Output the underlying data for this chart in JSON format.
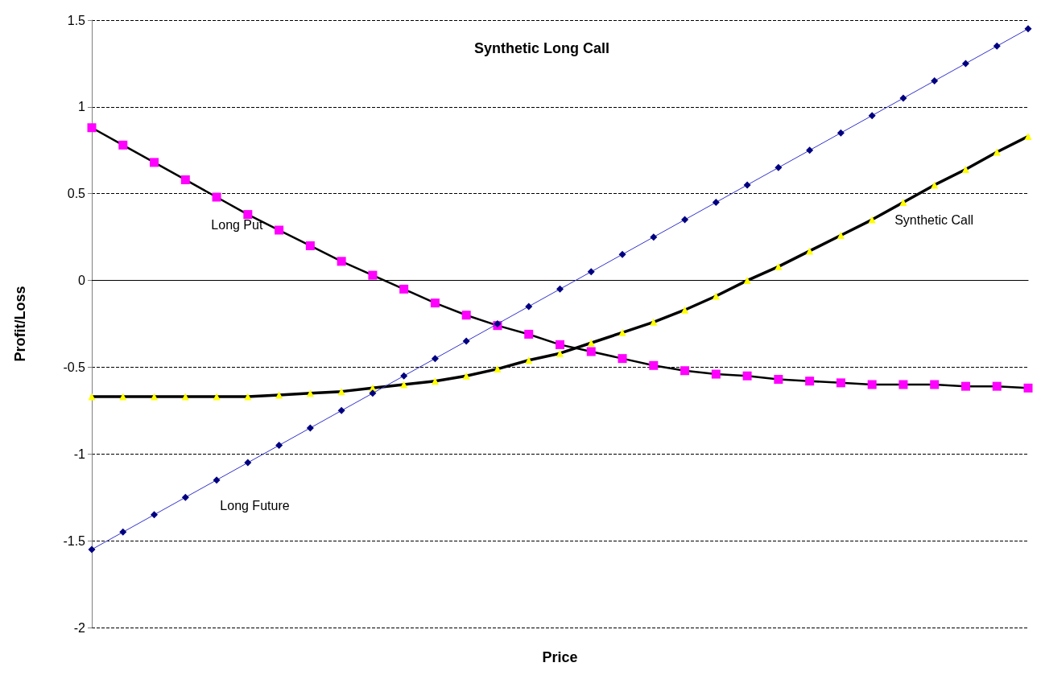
{
  "chart_data": {
    "type": "line",
    "title": "Synthetic Long Call",
    "xlabel": "Price",
    "ylabel": "Profit/Loss",
    "categories": [
      null,
      null,
      null,
      null,
      null,
      null,
      null,
      null,
      null,
      null,
      null,
      null,
      null,
      null,
      null,
      null,
      null,
      null,
      null,
      null,
      null,
      null,
      null,
      null,
      null,
      null,
      null,
      null,
      null,
      null,
      null
    ],
    "series": [
      {
        "name": "Long Put",
        "color": "#ff00ff",
        "marker": "square",
        "values": [
          0.88,
          0.78,
          0.68,
          0.58,
          0.48,
          0.38,
          0.29,
          0.2,
          0.11,
          0.03,
          -0.05,
          -0.13,
          -0.2,
          -0.26,
          -0.31,
          -0.37,
          -0.41,
          -0.45,
          -0.49,
          -0.52,
          -0.54,
          -0.55,
          -0.57,
          -0.58,
          -0.59,
          -0.6,
          -0.6,
          -0.6,
          -0.61,
          -0.61,
          -0.62
        ]
      },
      {
        "name": "Synthetic Call",
        "color": "#ffff00",
        "marker": "triangle",
        "values": [
          -0.67,
          -0.67,
          -0.67,
          -0.67,
          -0.67,
          -0.67,
          -0.66,
          -0.65,
          -0.64,
          -0.62,
          -0.6,
          -0.58,
          -0.55,
          -0.51,
          -0.46,
          -0.42,
          -0.36,
          -0.3,
          -0.24,
          -0.17,
          -0.09,
          0,
          0.08,
          0.17,
          0.26,
          0.35,
          0.45,
          0.55,
          0.64,
          0.74,
          0.83
        ]
      },
      {
        "name": "Long Future",
        "color": "#000080",
        "marker": "diamond",
        "values": [
          -1.55,
          -1.45,
          -1.35,
          -1.25,
          -1.15,
          -1.05,
          -0.95,
          -0.85,
          -0.75,
          -0.65,
          -0.55,
          -0.45,
          -0.35,
          -0.25,
          -0.15,
          -0.05,
          0.05,
          0.15,
          0.25,
          0.35,
          0.45,
          0.55,
          0.65,
          0.75,
          0.85,
          0.95,
          1.05,
          1.15,
          1.25,
          1.35,
          1.45
        ]
      }
    ],
    "ylim": [
      -2,
      1.5
    ],
    "yticks": [
      -2,
      -1.5,
      -1,
      -0.5,
      0,
      0.5,
      1,
      1.5
    ],
    "grid": "y",
    "legend": false,
    "line_style": "solid"
  }
}
